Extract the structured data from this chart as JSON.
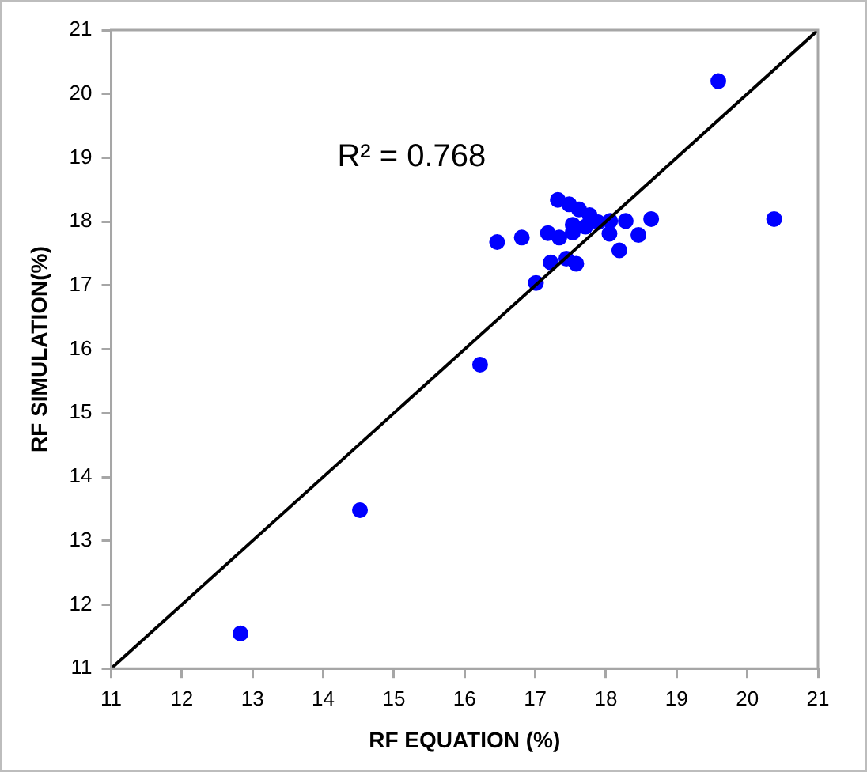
{
  "chart_data": {
    "type": "scatter",
    "xlabel": "RF EQUATION (%)",
    "ylabel": "RF SIMULATION(%)",
    "xlim": [
      11,
      21
    ],
    "xticks": [
      11,
      12,
      13,
      14,
      15,
      16,
      17,
      18,
      19,
      20,
      21
    ],
    "ylim": [
      11,
      21
    ],
    "yticks": [
      11,
      12,
      13,
      14,
      15,
      16,
      17,
      18,
      19,
      20,
      21
    ],
    "grid": false,
    "legend": false,
    "marker": "circle",
    "annotations": [
      "R² = 0.768"
    ],
    "series": [
      {
        "type": "scatter",
        "color": "#0000ff",
        "x": [
          12.83,
          14.52,
          16.22,
          17.01,
          16.46,
          16.81,
          17.18,
          17.34,
          17.22,
          17.44,
          17.58,
          17.32,
          17.48,
          17.62,
          17.77,
          17.89,
          17.53,
          17.53,
          17.71,
          18.05,
          18.06,
          18.28,
          18.19,
          18.46,
          18.64,
          19.59,
          20.38
        ],
        "values": [
          11.55,
          13.48,
          15.76,
          17.04,
          17.68,
          17.75,
          17.82,
          17.75,
          17.36,
          17.42,
          17.34,
          18.34,
          18.27,
          18.19,
          18.1,
          17.99,
          17.95,
          17.83,
          17.92,
          17.81,
          18.01,
          18.01,
          17.55,
          17.79,
          18.04,
          20.2,
          18.04
        ]
      },
      {
        "type": "line",
        "color": "#000000",
        "x": [
          11,
          21
        ],
        "values": [
          11,
          21
        ],
        "marker": "none",
        "line_style": "solid"
      }
    ]
  }
}
